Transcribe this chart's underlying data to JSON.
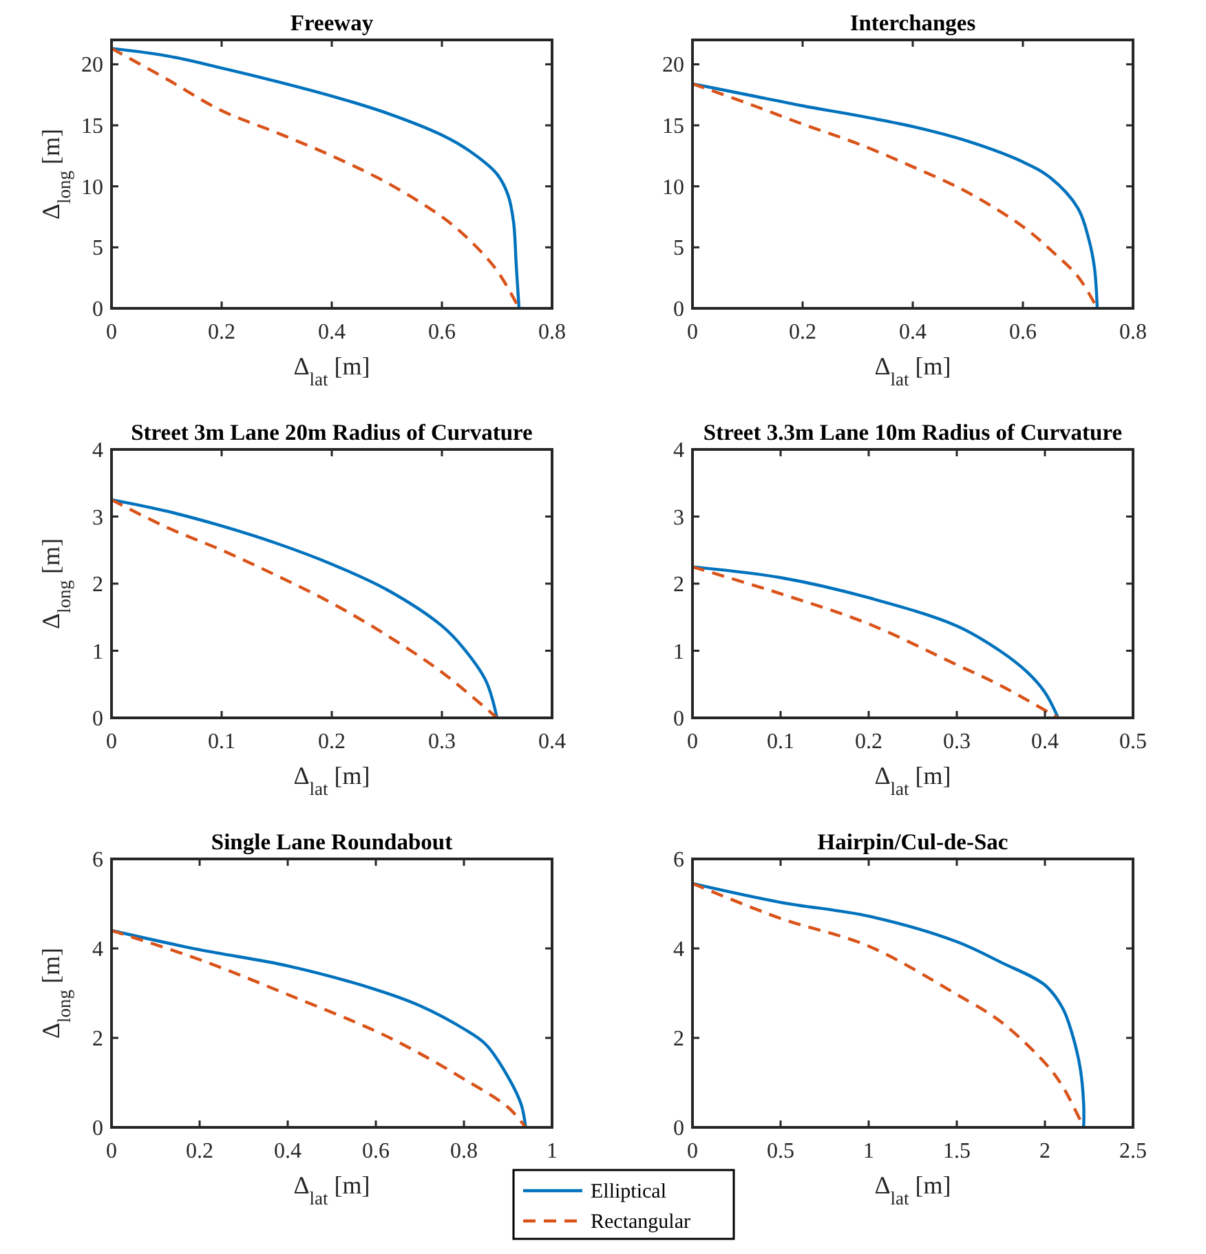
{
  "chart_data": [
    {
      "type": "line",
      "title": "Freeway",
      "xlabel": "Δ$_{lat}$ [m]",
      "ylabel": "Δ$_{long}$ [m]",
      "xlim": [
        0,
        0.8
      ],
      "ylim": [
        0,
        22
      ],
      "xticks": [
        0,
        0.2,
        0.4,
        0.6,
        0.8
      ],
      "yticks": [
        0,
        5,
        10,
        15,
        20
      ],
      "series": [
        {
          "color": "#0072bd",
          "line_style": "solid",
          "x": [
            0,
            0.1,
            0.2,
            0.3,
            0.4,
            0.5,
            0.6,
            0.65,
            0.7,
            0.72,
            0.73,
            0.735,
            0.74
          ],
          "values": [
            21.3,
            20.7,
            19.7,
            18.6,
            17.4,
            16.0,
            14.2,
            12.9,
            11.0,
            9.3,
            7.1,
            3.5,
            0
          ]
        },
        {
          "color": "#d95319",
          "line_style": "dashed",
          "x": [
            0,
            0.1,
            0.2,
            0.3,
            0.4,
            0.5,
            0.6,
            0.65,
            0.7,
            0.74
          ],
          "values": [
            21.3,
            18.8,
            16.2,
            14.4,
            12.5,
            10.3,
            7.5,
            5.6,
            3.1,
            0
          ]
        }
      ]
    },
    {
      "type": "line",
      "title": "Interchanges",
      "xlabel": "Δ$_{lat}$ [m]",
      "xlim": [
        0,
        0.8
      ],
      "ylim": [
        0,
        22
      ],
      "xticks": [
        0,
        0.2,
        0.4,
        0.6,
        0.8
      ],
      "yticks": [
        0,
        5,
        10,
        15,
        20
      ],
      "series": [
        {
          "color": "#0072bd",
          "line_style": "solid",
          "x": [
            0,
            0.1,
            0.2,
            0.3,
            0.4,
            0.5,
            0.6,
            0.65,
            0.7,
            0.72,
            0.73,
            0.735
          ],
          "values": [
            18.4,
            17.5,
            16.6,
            15.8,
            14.9,
            13.7,
            12.0,
            10.7,
            8.2,
            5.6,
            3.3,
            0
          ]
        },
        {
          "color": "#d95319",
          "line_style": "dashed",
          "x": [
            0,
            0.1,
            0.2,
            0.3,
            0.4,
            0.5,
            0.6,
            0.65,
            0.7,
            0.735
          ],
          "values": [
            18.4,
            16.8,
            15.1,
            13.5,
            11.6,
            9.5,
            6.7,
            4.8,
            2.6,
            0
          ]
        }
      ]
    },
    {
      "type": "line",
      "title": "Street 3m Lane 20m Radius of Curvature",
      "xlabel": "Δ$_{lat}$ [m]",
      "ylabel": "Δ$_{long}$ [m]",
      "xlim": [
        0,
        0.4
      ],
      "ylim": [
        0,
        4
      ],
      "xticks": [
        0,
        0.1,
        0.2,
        0.3,
        0.4
      ],
      "yticks": [
        0,
        1,
        2,
        3,
        4
      ],
      "series": [
        {
          "color": "#0072bd",
          "line_style": "solid",
          "x": [
            0,
            0.05,
            0.1,
            0.15,
            0.2,
            0.25,
            0.3,
            0.32,
            0.34,
            0.35
          ],
          "values": [
            3.25,
            3.08,
            2.86,
            2.6,
            2.29,
            1.91,
            1.37,
            1.03,
            0.55,
            0
          ]
        },
        {
          "color": "#d95319",
          "line_style": "dashed",
          "x": [
            0,
            0.05,
            0.1,
            0.15,
            0.2,
            0.25,
            0.3,
            0.35
          ],
          "values": [
            3.25,
            2.84,
            2.5,
            2.12,
            1.71,
            1.23,
            0.68,
            0
          ]
        }
      ]
    },
    {
      "type": "line",
      "title": "Street 3.3m Lane 10m Radius of Curvature",
      "xlabel": "Δ$_{lat}$ [m]",
      "xlim": [
        0,
        0.5
      ],
      "ylim": [
        0,
        4
      ],
      "xticks": [
        0,
        0.1,
        0.2,
        0.3,
        0.4,
        0.5
      ],
      "yticks": [
        0,
        1,
        2,
        3,
        4
      ],
      "series": [
        {
          "color": "#0072bd",
          "line_style": "solid",
          "x": [
            0,
            0.1,
            0.2,
            0.3,
            0.35,
            0.38,
            0.4,
            0.415
          ],
          "values": [
            2.25,
            2.09,
            1.79,
            1.37,
            0.99,
            0.68,
            0.38,
            0
          ]
        },
        {
          "color": "#d95319",
          "line_style": "dashed",
          "x": [
            0,
            0.1,
            0.2,
            0.3,
            0.35,
            0.415
          ],
          "values": [
            2.25,
            1.85,
            1.4,
            0.79,
            0.48,
            0
          ]
        }
      ]
    },
    {
      "type": "line",
      "title": "Single Lane Roundabout",
      "xlabel": "Δ$_{lat}$ [m]",
      "ylabel": "Δ$_{long}$ [m]",
      "xlim": [
        0,
        1
      ],
      "ylim": [
        0,
        6
      ],
      "xticks": [
        0,
        0.2,
        0.4,
        0.6,
        0.8,
        1
      ],
      "yticks": [
        0,
        2,
        4,
        6
      ],
      "legend": "bottom",
      "series": [
        {
          "name": "Elliptical",
          "color": "#0072bd",
          "line_style": "solid",
          "x": [
            0,
            0.2,
            0.4,
            0.6,
            0.7,
            0.8,
            0.85,
            0.9,
            0.93,
            0.94
          ],
          "values": [
            4.4,
            3.97,
            3.61,
            3.08,
            2.72,
            2.2,
            1.85,
            1.13,
            0.51,
            0
          ]
        },
        {
          "name": "Rectangular",
          "color": "#d95319",
          "line_style": "dashed",
          "x": [
            0,
            0.2,
            0.4,
            0.6,
            0.7,
            0.8,
            0.9,
            0.94
          ],
          "values": [
            4.4,
            3.75,
            2.97,
            2.15,
            1.65,
            1.08,
            0.45,
            0
          ]
        }
      ]
    },
    {
      "type": "line",
      "title": "Hairpin/Cul-de-Sac",
      "xlabel": "Δ$_{lat}$ [m]",
      "xlim": [
        0,
        2.5
      ],
      "ylim": [
        0,
        6
      ],
      "xticks": [
        0,
        0.5,
        1,
        1.5,
        2,
        2.5
      ],
      "yticks": [
        0,
        2,
        4,
        6
      ],
      "series": [
        {
          "color": "#0072bd",
          "line_style": "solid",
          "x": [
            0,
            0.5,
            1,
            1.5,
            1.75,
            2,
            2.1,
            2.15,
            2.2,
            2.22,
            2.22
          ],
          "values": [
            5.45,
            5.03,
            4.72,
            4.15,
            3.69,
            3.18,
            2.67,
            2.15,
            1.33,
            0.51,
            0
          ]
        },
        {
          "color": "#d95319",
          "line_style": "dashed",
          "x": [
            0,
            0.5,
            1,
            1.5,
            1.75,
            2,
            2.1,
            2.22
          ],
          "values": [
            5.45,
            4.67,
            4.05,
            2.97,
            2.36,
            1.44,
            0.92,
            0
          ]
        }
      ]
    }
  ]
}
